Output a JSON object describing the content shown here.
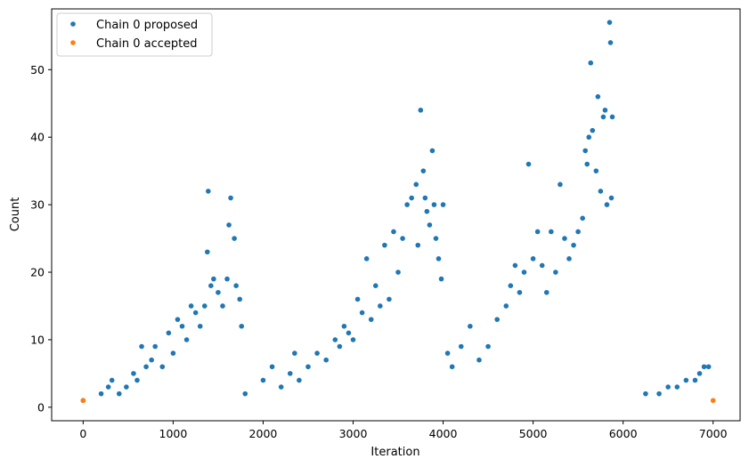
{
  "chart_data": {
    "type": "scatter",
    "xlabel": "Iteration",
    "ylabel": "Count",
    "xlim": [
      -350,
      7300
    ],
    "ylim": [
      -2,
      59
    ],
    "xticks": [
      0,
      1000,
      2000,
      3000,
      4000,
      5000,
      6000,
      7000
    ],
    "yticks": [
      0,
      10,
      20,
      30,
      40,
      50
    ],
    "legend_position": "top-left",
    "series": [
      {
        "name": "Chain 0 proposed",
        "color": "#1f77b4",
        "points": [
          [
            0,
            1
          ],
          [
            200,
            2
          ],
          [
            280,
            3
          ],
          [
            320,
            4
          ],
          [
            400,
            2
          ],
          [
            480,
            3
          ],
          [
            560,
            5
          ],
          [
            600,
            4
          ],
          [
            650,
            9
          ],
          [
            700,
            6
          ],
          [
            760,
            7
          ],
          [
            800,
            9
          ],
          [
            880,
            6
          ],
          [
            950,
            11
          ],
          [
            1000,
            8
          ],
          [
            1050,
            13
          ],
          [
            1100,
            12
          ],
          [
            1150,
            10
          ],
          [
            1200,
            15
          ],
          [
            1250,
            14
          ],
          [
            1300,
            12
          ],
          [
            1350,
            15
          ],
          [
            1380,
            23
          ],
          [
            1390,
            32
          ],
          [
            1420,
            18
          ],
          [
            1450,
            19
          ],
          [
            1500,
            17
          ],
          [
            1550,
            15
          ],
          [
            1600,
            19
          ],
          [
            1620,
            27
          ],
          [
            1640,
            31
          ],
          [
            1680,
            25
          ],
          [
            1700,
            18
          ],
          [
            1740,
            16
          ],
          [
            1760,
            12
          ],
          [
            1800,
            2
          ],
          [
            2000,
            4
          ],
          [
            2100,
            6
          ],
          [
            2200,
            3
          ],
          [
            2300,
            5
          ],
          [
            2350,
            8
          ],
          [
            2400,
            4
          ],
          [
            2500,
            6
          ],
          [
            2600,
            8
          ],
          [
            2700,
            7
          ],
          [
            2800,
            10
          ],
          [
            2850,
            9
          ],
          [
            2900,
            12
          ],
          [
            2950,
            11
          ],
          [
            3000,
            10
          ],
          [
            3050,
            16
          ],
          [
            3100,
            14
          ],
          [
            3150,
            22
          ],
          [
            3200,
            13
          ],
          [
            3250,
            18
          ],
          [
            3300,
            15
          ],
          [
            3350,
            24
          ],
          [
            3400,
            16
          ],
          [
            3450,
            26
          ],
          [
            3500,
            20
          ],
          [
            3550,
            25
          ],
          [
            3600,
            30
          ],
          [
            3650,
            31
          ],
          [
            3700,
            33
          ],
          [
            3720,
            24
          ],
          [
            3750,
            44
          ],
          [
            3780,
            35
          ],
          [
            3800,
            31
          ],
          [
            3820,
            29
          ],
          [
            3850,
            27
          ],
          [
            3880,
            38
          ],
          [
            3900,
            30
          ],
          [
            3920,
            25
          ],
          [
            3950,
            22
          ],
          [
            3980,
            19
          ],
          [
            4000,
            30
          ],
          [
            4050,
            8
          ],
          [
            4100,
            6
          ],
          [
            4200,
            9
          ],
          [
            4300,
            12
          ],
          [
            4400,
            7
          ],
          [
            4500,
            9
          ],
          [
            4600,
            13
          ],
          [
            4700,
            15
          ],
          [
            4750,
            18
          ],
          [
            4800,
            21
          ],
          [
            4850,
            17
          ],
          [
            4900,
            20
          ],
          [
            4950,
            36
          ],
          [
            5000,
            22
          ],
          [
            5050,
            26
          ],
          [
            5100,
            21
          ],
          [
            5150,
            17
          ],
          [
            5200,
            26
          ],
          [
            5250,
            20
          ],
          [
            5300,
            33
          ],
          [
            5350,
            25
          ],
          [
            5400,
            22
          ],
          [
            5450,
            24
          ],
          [
            5500,
            26
          ],
          [
            5550,
            28
          ],
          [
            5580,
            38
          ],
          [
            5600,
            36
          ],
          [
            5620,
            40
          ],
          [
            5640,
            51
          ],
          [
            5660,
            41
          ],
          [
            5700,
            35
          ],
          [
            5720,
            46
          ],
          [
            5750,
            32
          ],
          [
            5780,
            43
          ],
          [
            5800,
            44
          ],
          [
            5820,
            30
          ],
          [
            5850,
            57
          ],
          [
            5860,
            54
          ],
          [
            5870,
            31
          ],
          [
            5880,
            43
          ],
          [
            6250,
            2
          ],
          [
            6400,
            2
          ],
          [
            6500,
            3
          ],
          [
            6600,
            3
          ],
          [
            6700,
            4
          ],
          [
            6800,
            4
          ],
          [
            6850,
            5
          ],
          [
            6900,
            6
          ],
          [
            6950,
            6
          ]
        ]
      },
      {
        "name": "Chain 0 accepted",
        "color": "#ff7f0e",
        "points": [
          [
            0,
            1
          ],
          [
            7000,
            1
          ]
        ]
      }
    ]
  }
}
